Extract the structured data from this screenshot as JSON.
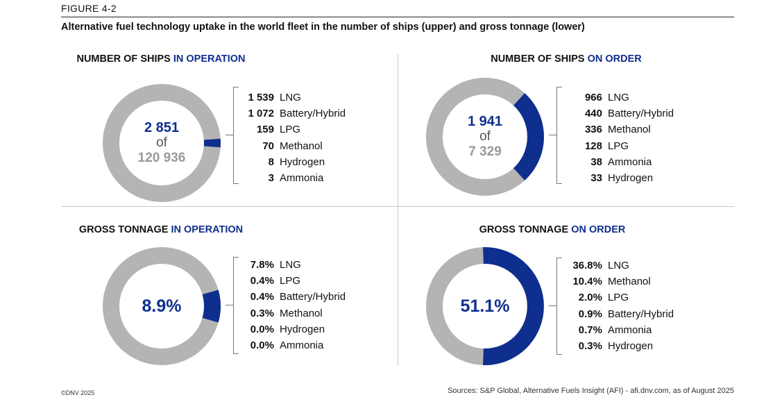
{
  "figure_label": "FIGURE 4-2",
  "title": "Alternative fuel technology uptake in the world fleet in the number of ships (upper) and gross tonnage (lower)",
  "copyright": "©DNV 2025",
  "sources": "Sources: S&P Global, Alternative Fuels Insight (AFI) - afi.dnv.com, as of August 2025",
  "colors": {
    "accent": "#0f2f8f",
    "ring": "#b4b4b4",
    "muted_number": "#999999"
  },
  "chart_data": [
    {
      "type": "pie",
      "title_main": "NUMBER OF SHIPS ",
      "title_accent": "IN OPERATION",
      "center": {
        "line1": "2 851",
        "line2": "of",
        "line3": "120 936"
      },
      "share": 2.357,
      "legend": [
        {
          "value": "1 539",
          "label": "LNG"
        },
        {
          "value": "1 072",
          "label": "Battery/Hybrid"
        },
        {
          "value": "159",
          "label": "LPG"
        },
        {
          "value": "70",
          "label": "Methanol"
        },
        {
          "value": "8",
          "label": "Hydrogen"
        },
        {
          "value": "3",
          "label": "Ammonia"
        }
      ]
    },
    {
      "type": "pie",
      "title_main": "NUMBER OF SHIPS ",
      "title_accent": "ON ORDER",
      "center": {
        "line1": "1 941",
        "line2": "of",
        "line3": "7 329"
      },
      "share": 26.48,
      "legend": [
        {
          "value": "966",
          "label": "LNG"
        },
        {
          "value": "440",
          "label": "Battery/Hybrid"
        },
        {
          "value": "336",
          "label": "Methanol"
        },
        {
          "value": "128",
          "label": "LPG"
        },
        {
          "value": "38",
          "label": "Ammonia"
        },
        {
          "value": "33",
          "label": "Hydrogen"
        }
      ]
    },
    {
      "type": "pie",
      "title_main": "GROSS TONNAGE ",
      "title_accent": "IN OPERATION",
      "center": {
        "pct": "8.9%"
      },
      "share": 8.9,
      "legend": [
        {
          "value": "7.8%",
          "label": "LNG"
        },
        {
          "value": "0.4%",
          "label": "LPG"
        },
        {
          "value": "0.4%",
          "label": "Battery/Hybrid"
        },
        {
          "value": "0.3%",
          "label": "Methanol"
        },
        {
          "value": "0.0%",
          "label": "Hydrogen"
        },
        {
          "value": "0.0%",
          "label": "Ammonia"
        }
      ]
    },
    {
      "type": "pie",
      "title_main": "GROSS TONNAGE ",
      "title_accent": "ON ORDER",
      "center": {
        "pct": "51.1%"
      },
      "share": 51.1,
      "legend": [
        {
          "value": "36.8%",
          "label": "LNG"
        },
        {
          "value": "10.4%",
          "label": "Methanol"
        },
        {
          "value": "2.0%",
          "label": "LPG"
        },
        {
          "value": "0.9%",
          "label": "Battery/Hybrid"
        },
        {
          "value": "0.7%",
          "label": "Ammonia"
        },
        {
          "value": "0.3%",
          "label": "Hydrogen"
        }
      ]
    }
  ]
}
